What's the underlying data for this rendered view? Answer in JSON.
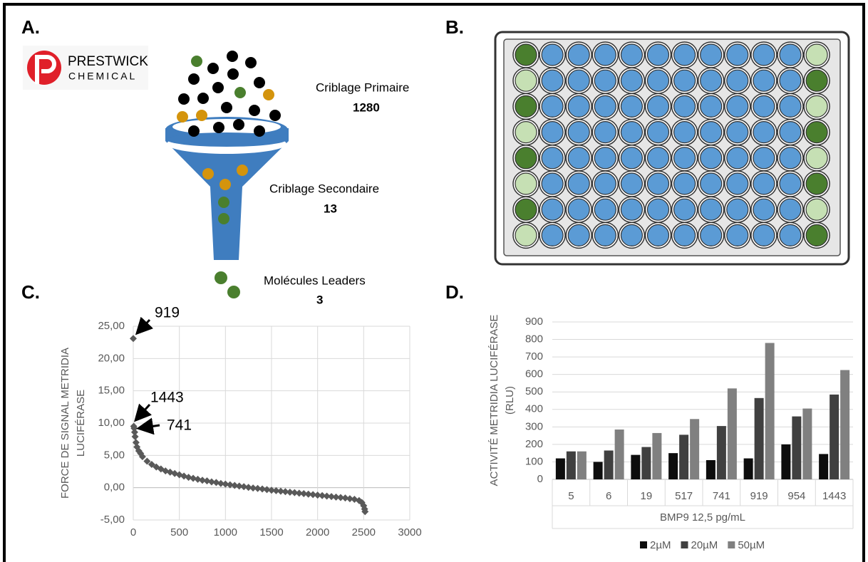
{
  "panels": {
    "a": "A.",
    "b": "B.",
    "c": "C.",
    "d": "D."
  },
  "diagram": {
    "logo": {
      "line1": "PRESTWICK",
      "line2": "CHEMICAL"
    },
    "stages": [
      {
        "label": "Criblage Primaire",
        "count": "1280"
      },
      {
        "label": "Criblage Secondaire",
        "count": "13"
      },
      {
        "label": "Molécules Leaders",
        "count": "3"
      }
    ]
  },
  "chart_data": [
    {
      "type": "scatter",
      "ylabel": [
        "FORCE DE SIGNAL METRIDIA",
        "LUCIFÉRASE"
      ],
      "color": "#595959",
      "x": [
        0,
        5,
        10,
        15,
        20,
        30,
        40,
        60,
        80,
        100,
        150,
        200,
        250,
        300,
        350,
        400,
        450,
        500,
        550,
        600,
        650,
        700,
        750,
        800,
        850,
        900,
        950,
        1000,
        1050,
        1100,
        1150,
        1200,
        1250,
        1300,
        1350,
        1400,
        1450,
        1500,
        1550,
        1600,
        1650,
        1700,
        1750,
        1800,
        1850,
        1900,
        1950,
        2000,
        2050,
        2100,
        2150,
        2200,
        2250,
        2300,
        2350,
        2400,
        2450,
        2480,
        2500,
        2510,
        2515
      ],
      "y": [
        23.1,
        9.5,
        9.2,
        8.6,
        7.9,
        7.0,
        6.3,
        5.7,
        5.3,
        4.8,
        4.1,
        3.6,
        3.2,
        2.9,
        2.6,
        2.4,
        2.2,
        2.0,
        1.8,
        1.6,
        1.45,
        1.3,
        1.15,
        1.05,
        0.9,
        0.8,
        0.65,
        0.55,
        0.45,
        0.35,
        0.25,
        0.15,
        0.05,
        -0.05,
        -0.12,
        -0.2,
        -0.3,
        -0.4,
        -0.47,
        -0.55,
        -0.62,
        -0.7,
        -0.77,
        -0.85,
        -0.92,
        -1.0,
        -1.07,
        -1.15,
        -1.22,
        -1.3,
        -1.37,
        -1.45,
        -1.52,
        -1.6,
        -1.7,
        -1.8,
        -2.0,
        -2.3,
        -2.8,
        -3.3,
        -3.7
      ],
      "xlim": [
        0,
        3000
      ],
      "xticks": [
        0,
        500,
        1000,
        1500,
        2000,
        2500,
        3000
      ],
      "ylim": [
        -5,
        25
      ],
      "yticks": [
        {
          "value": -5,
          "label": "-5,00"
        },
        {
          "value": 0,
          "label": "0,00"
        },
        {
          "value": 5,
          "label": "5,00"
        },
        {
          "value": 10,
          "label": "10,00"
        },
        {
          "value": 15,
          "label": "15,00"
        },
        {
          "value": 20,
          "label": "20,00"
        },
        {
          "value": 25,
          "label": "25,00"
        }
      ],
      "grid": true,
      "annotations": [
        {
          "text": "919"
        },
        {
          "text": "1443"
        },
        {
          "text": "741"
        }
      ]
    },
    {
      "type": "bar",
      "xlabel": "BMP9 12,5 pg/mL",
      "ylabel": [
        "ACTIVITÉ METRIDIA LUCIFÉRASE",
        "(RLU)"
      ],
      "categories": [
        "5",
        "6",
        "19",
        "517",
        "741",
        "919",
        "954",
        "1443"
      ],
      "series": [
        {
          "name": "2µM",
          "color": "#0d0d0d",
          "values": [
            120,
            100,
            140,
            150,
            110,
            120,
            200,
            145
          ]
        },
        {
          "name": "20µM",
          "color": "#404040",
          "values": [
            160,
            165,
            185,
            255,
            305,
            465,
            360,
            485
          ]
        },
        {
          "name": "50µM",
          "color": "#808080",
          "values": [
            160,
            285,
            265,
            345,
            520,
            780,
            405,
            625
          ]
        }
      ],
      "ylim": [
        0,
        900
      ],
      "yticks": [
        0,
        100,
        200,
        300,
        400,
        500,
        600,
        700,
        800,
        900
      ],
      "grid": true,
      "legend": "bottom"
    }
  ]
}
